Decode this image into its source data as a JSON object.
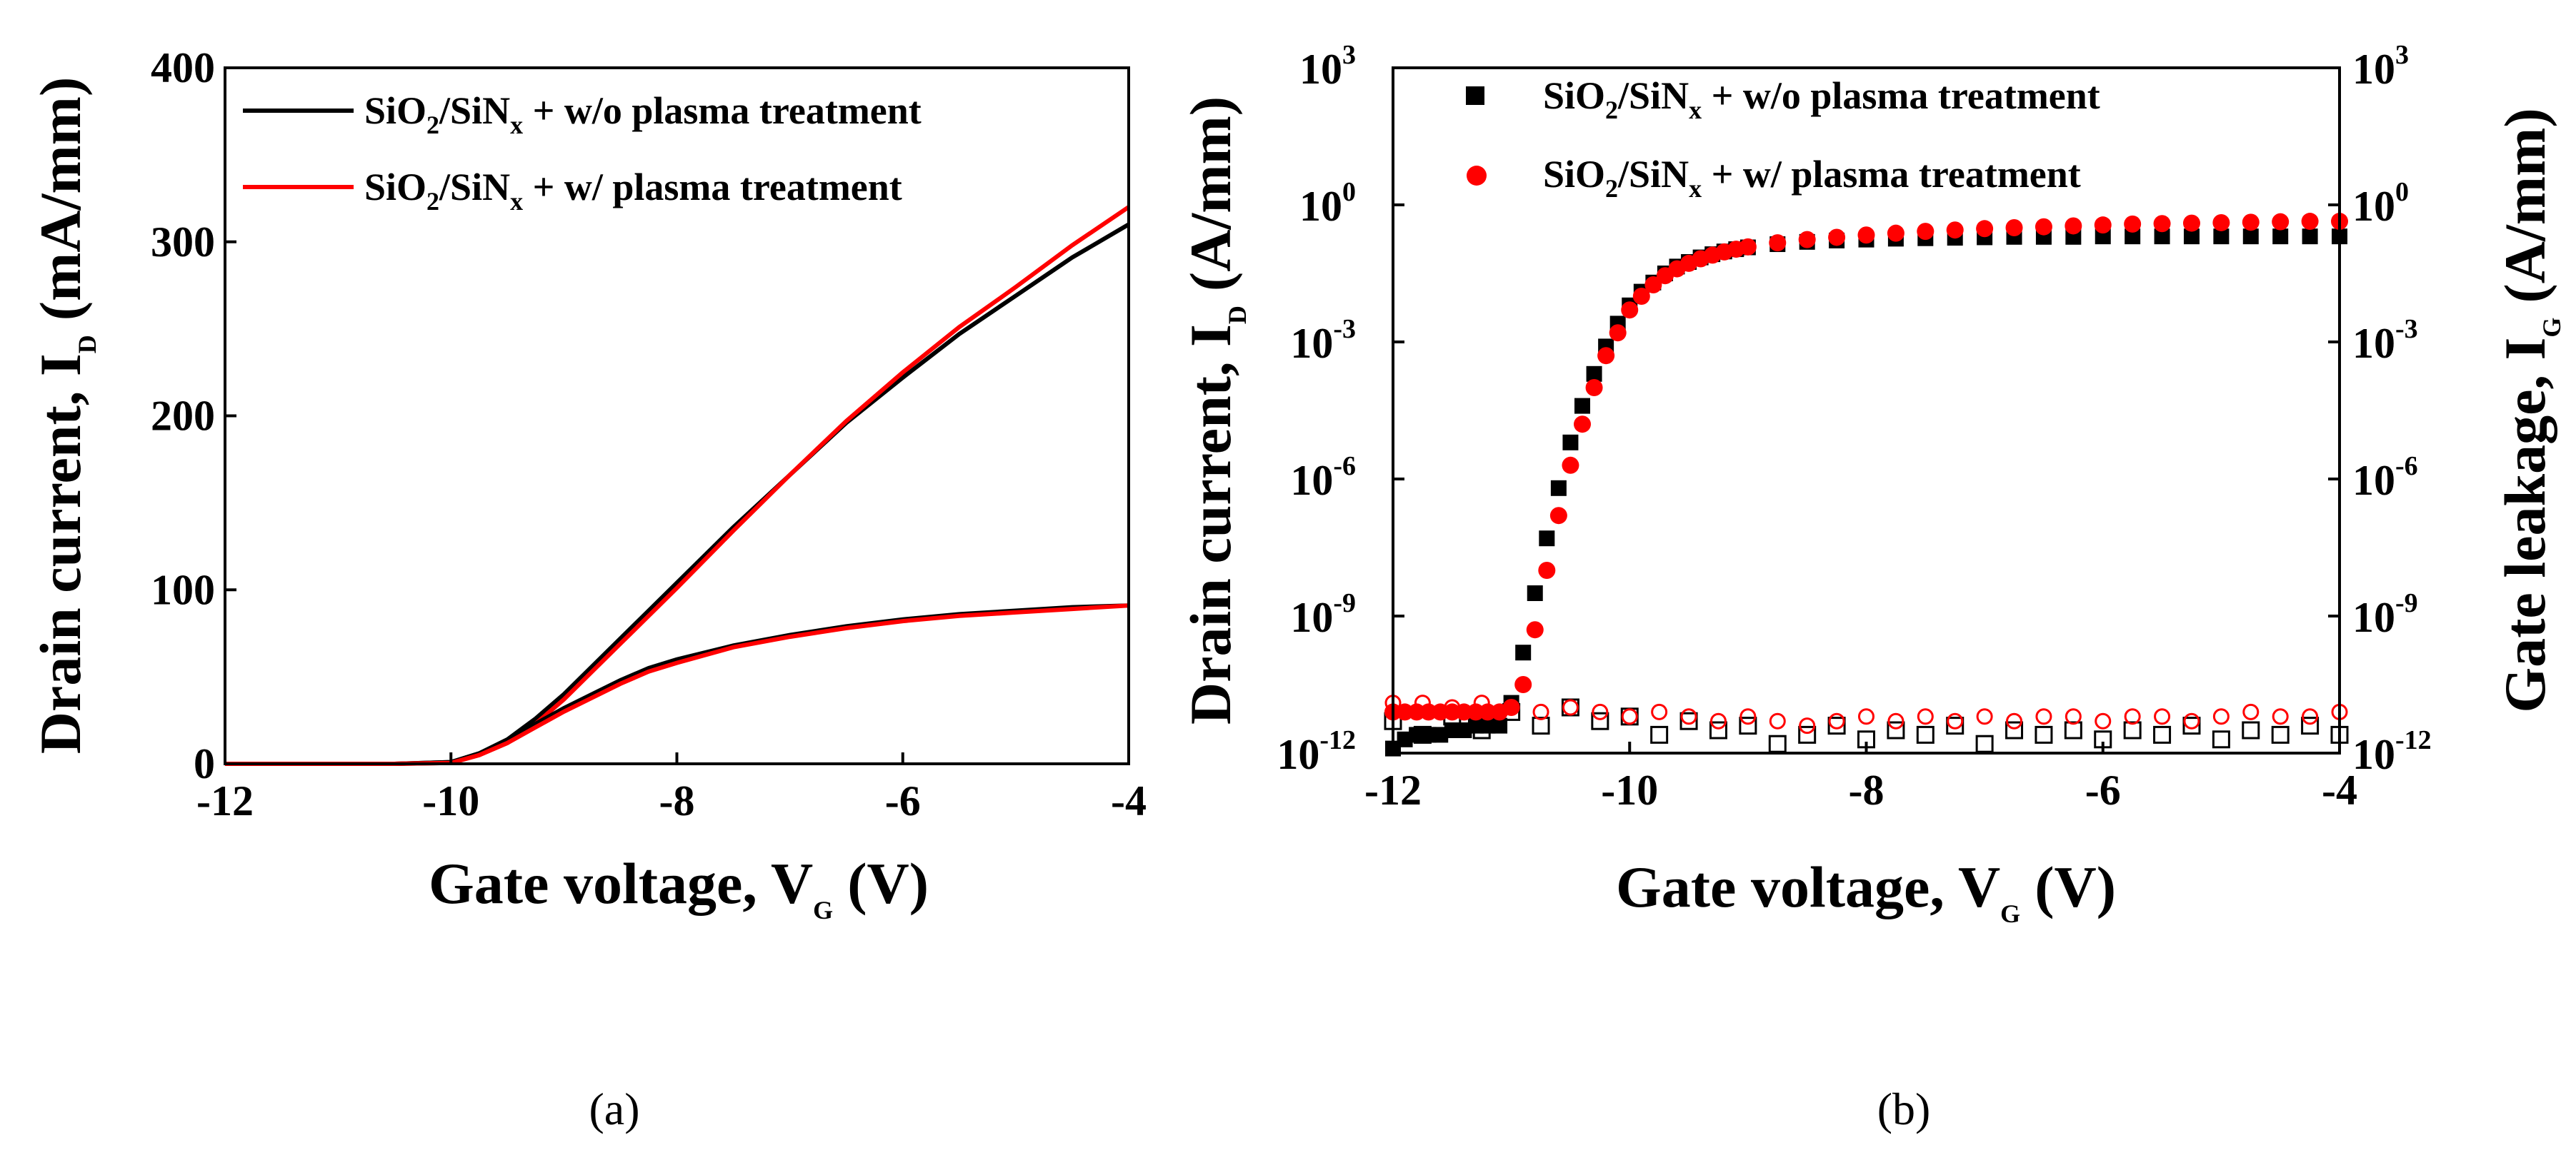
{
  "chart_data": [
    {
      "type": "line",
      "panel": "(a)",
      "caption": "(a)",
      "xlabel": {
        "main": "Gate voltage, V",
        "sub": "G",
        "unit": "(V)"
      },
      "ylabel": {
        "main": "Drain current, I",
        "sub": "D",
        "unit": "(mA/mm)"
      },
      "xlim": [
        -12,
        -4
      ],
      "ylim": [
        0,
        400
      ],
      "xticks": [
        -12,
        -10,
        -8,
        -6,
        -4
      ],
      "yticks": [
        0,
        100,
        200,
        300,
        400
      ],
      "legend": {
        "position": "top-left",
        "entries": [
          {
            "pre": "SiO",
            "s1": "2",
            "mid": "/SiN",
            "s2": "x",
            "post": " + w/o plasma treatment",
            "color": "#000000"
          },
          {
            "pre": "SiO",
            "s1": "2",
            "mid": "/SiN",
            "s2": "x",
            "post": " + w/ plasma treatment",
            "color": "#ff0000"
          }
        ]
      },
      "x": [
        -12,
        -11,
        -10.5,
        -10,
        -9.75,
        -9.5,
        -9.25,
        -9,
        -8.75,
        -8.5,
        -8.25,
        -8,
        -7.5,
        -7,
        -6.5,
        -6,
        -5.5,
        -5,
        -4.5,
        -4
      ],
      "series": [
        {
          "name": "w/o plasma treatment (upper)",
          "color": "#000000",
          "values": [
            0,
            0,
            0,
            1,
            6,
            14,
            26,
            40,
            56,
            72,
            88,
            104,
            136,
            166,
            196,
            222,
            247,
            269,
            291,
            310
          ]
        },
        {
          "name": "w/ plasma treatment (upper)",
          "color": "#ff0000",
          "values": [
            0,
            0,
            0,
            0.5,
            5,
            12,
            23,
            37,
            53,
            69,
            85,
            101,
            134,
            166,
            197,
            225,
            251,
            274,
            298,
            320
          ]
        },
        {
          "name": "w/o plasma treatment (lower)",
          "color": "#000000",
          "values": [
            0,
            0,
            0,
            1,
            6,
            14,
            23,
            32,
            40,
            48,
            55,
            60,
            68,
            74,
            79,
            83,
            86,
            88,
            90,
            91
          ]
        },
        {
          "name": "w/ plasma treatment (lower)",
          "color": "#ff0000",
          "values": [
            0,
            0,
            0,
            0.5,
            5,
            12,
            21,
            30,
            38,
            46,
            53,
            58,
            67,
            73,
            78,
            82,
            85,
            87,
            89,
            91
          ]
        }
      ]
    },
    {
      "type": "scatter",
      "panel": "(b)",
      "caption": "(b)",
      "yscale": "log",
      "xlabel": {
        "main": "Gate voltage, V",
        "sub": "G",
        "unit": "(V)"
      },
      "ylabel": {
        "main": "Drain current, I",
        "sub": "D",
        "unit": "(A/mm)"
      },
      "y2label": {
        "main": "Gate leakage, I",
        "sub": "G",
        "unit": "(A/mm)"
      },
      "xlim": [
        -12,
        -4
      ],
      "ylim_exp": [
        -12,
        3
      ],
      "xticks": [
        -12,
        -10,
        -8,
        -6,
        -4
      ],
      "ytick_exponents": [
        "-12",
        "-9",
        "-6",
        "-3",
        "0",
        "3"
      ],
      "ytick_base": "10",
      "legend": {
        "position": "top-left",
        "entries": [
          {
            "pre": "SiO",
            "s1": "2",
            "mid": "/SiN",
            "s2": "x",
            "post": " + w/o plasma treatment",
            "color": "#000000",
            "marker": "square"
          },
          {
            "pre": "SiO",
            "s1": "2",
            "mid": "/SiN",
            "s2": "x",
            "post": " + w/ plasma treatment",
            "color": "#ff0000",
            "marker": "circle"
          }
        ]
      },
      "drain_x": [
        -12,
        -11.9,
        -11.8,
        -11.7,
        -11.6,
        -11.5,
        -11.4,
        -11.3,
        -11.2,
        -11.1,
        -11.0,
        -10.9,
        -10.8,
        -10.7,
        -10.6,
        -10.5,
        -10.4,
        -10.3,
        -10.2,
        -10.1,
        -10.0,
        -9.9,
        -9.8,
        -9.7,
        -9.6,
        -9.5,
        -9.4,
        -9.3,
        -9.2,
        -9.1,
        -9.0,
        -8.75,
        -8.5,
        -8.25,
        -8.0,
        -7.75,
        -7.5,
        -7.25,
        -7.0,
        -6.75,
        -6.5,
        -6.25,
        -6.0,
        -5.75,
        -5.5,
        -5.25,
        -5.0,
        -4.75,
        -4.5,
        -4.25,
        -4.0
      ],
      "series": [
        {
          "name": "w/o plasma treatment I_D",
          "color": "#000000",
          "marker": "square-filled",
          "log10_values": [
            -11.9,
            -11.7,
            -11.6,
            -11.6,
            -11.6,
            -11.5,
            -11.5,
            -11.4,
            -11.4,
            -11.4,
            -10.9,
            -9.8,
            -8.5,
            -7.3,
            -6.2,
            -5.2,
            -4.4,
            -3.7,
            -3.1,
            -2.6,
            -2.2,
            -1.9,
            -1.7,
            -1.5,
            -1.35,
            -1.25,
            -1.15,
            -1.08,
            -1.02,
            -0.97,
            -0.93,
            -0.86,
            -0.81,
            -0.78,
            -0.76,
            -0.74,
            -0.73,
            -0.72,
            -0.71,
            -0.7,
            -0.7,
            -0.7,
            -0.69,
            -0.69,
            -0.69,
            -0.69,
            -0.69,
            -0.69,
            -0.69,
            -0.69,
            -0.69
          ]
        },
        {
          "name": "w/ plasma treatment I_D",
          "color": "#ff0000",
          "marker": "circle-filled",
          "log10_values": [
            -11.1,
            -11.1,
            -11.1,
            -11.1,
            -11.1,
            -11.1,
            -11.1,
            -11.1,
            -11.1,
            -11.1,
            -11.0,
            -10.5,
            -9.3,
            -8.0,
            -6.8,
            -5.7,
            -4.8,
            -4.0,
            -3.3,
            -2.8,
            -2.3,
            -2.0,
            -1.75,
            -1.55,
            -1.4,
            -1.28,
            -1.18,
            -1.1,
            -1.03,
            -0.97,
            -0.92,
            -0.83,
            -0.76,
            -0.71,
            -0.66,
            -0.62,
            -0.58,
            -0.55,
            -0.52,
            -0.5,
            -0.48,
            -0.46,
            -0.44,
            -0.42,
            -0.41,
            -0.4,
            -0.39,
            -0.38,
            -0.37,
            -0.36,
            -0.36
          ]
        }
      ],
      "leakage_x": [
        -12,
        -11.75,
        -11.5,
        -11.25,
        -11.0,
        -10.75,
        -10.5,
        -10.25,
        -10.0,
        -9.75,
        -9.5,
        -9.25,
        -9.0,
        -8.75,
        -8.5,
        -8.25,
        -8.0,
        -7.75,
        -7.5,
        -7.25,
        -7.0,
        -6.75,
        -6.5,
        -6.25,
        -6.0,
        -5.75,
        -5.5,
        -5.25,
        -5.0,
        -4.75,
        -4.5,
        -4.25,
        -4.0
      ],
      "leakage_series": [
        {
          "name": "w/o plasma treatment I_G",
          "color": "#000000",
          "marker": "square-open",
          "log10_values": [
            -11.3,
            -11.6,
            -11.2,
            -11.5,
            -11.1,
            -11.4,
            -11.0,
            -11.3,
            -11.2,
            -11.6,
            -11.3,
            -11.5,
            -11.4,
            -11.8,
            -11.6,
            -11.4,
            -11.7,
            -11.5,
            -11.6,
            -11.4,
            -11.8,
            -11.5,
            -11.6,
            -11.5,
            -11.7,
            -11.5,
            -11.6,
            -11.4,
            -11.7,
            -11.5,
            -11.6,
            -11.4,
            -11.6
          ]
        },
        {
          "name": "w/ plasma treatment I_G",
          "color": "#ff0000",
          "marker": "circle-open",
          "log10_values": [
            -10.9,
            -10.9,
            -11.0,
            -10.9,
            -11.0,
            -11.1,
            -11.0,
            -11.1,
            -11.2,
            -11.1,
            -11.2,
            -11.3,
            -11.2,
            -11.3,
            -11.4,
            -11.3,
            -11.2,
            -11.3,
            -11.2,
            -11.3,
            -11.2,
            -11.3,
            -11.2,
            -11.2,
            -11.3,
            -11.2,
            -11.2,
            -11.3,
            -11.2,
            -11.1,
            -11.2,
            -11.2,
            -11.1
          ]
        }
      ]
    }
  ]
}
